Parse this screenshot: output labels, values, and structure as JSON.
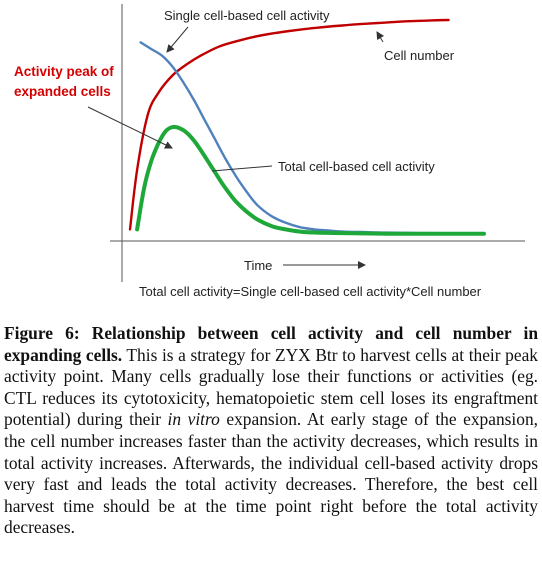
{
  "chart_data": {
    "type": "line",
    "title": "",
    "xlabel": "Time",
    "ylabel": "",
    "xlim": [
      0,
      100
    ],
    "ylim": [
      0,
      100
    ],
    "series": [
      {
        "name": "Cell number",
        "color": "#c00000",
        "x": [
          0,
          2,
          5,
          8,
          12,
          16,
          20,
          25,
          30,
          35,
          40,
          45,
          50,
          55,
          60,
          65,
          70,
          75,
          80,
          85,
          90
        ],
        "y": [
          3,
          30,
          55,
          65,
          73,
          78,
          82,
          86,
          88.5,
          90.5,
          92,
          93.2,
          94.2,
          95,
          95.7,
          96.3,
          96.8,
          97.3,
          97.7,
          98,
          98.2
        ]
      },
      {
        "name": "Single cell-based cell activity",
        "color": "#4f81bd",
        "x": [
          3,
          6,
          9,
          12,
          15,
          18,
          21,
          24,
          27,
          30,
          33,
          36,
          40,
          44,
          48,
          52,
          56,
          60,
          65,
          70,
          75,
          80,
          85,
          90,
          95,
          100
        ],
        "y": [
          88,
          85,
          82,
          77,
          70,
          62,
          53,
          44,
          35,
          27,
          20,
          14,
          9,
          6,
          4,
          3,
          2.5,
          2,
          1.8,
          1.6,
          1.5,
          1.4,
          1.3,
          1.2,
          1.2,
          1.2
        ]
      },
      {
        "name": "Total cell-based cell activity",
        "color": "#1fa83a",
        "x": [
          2,
          4,
          6,
          8,
          10,
          12,
          14,
          16,
          18,
          20,
          22,
          24,
          26,
          28,
          30,
          33,
          36,
          40,
          44,
          48,
          52,
          56,
          60,
          65,
          70,
          75,
          80,
          85,
          90,
          95,
          100
        ],
        "y": [
          3,
          22,
          34,
          42,
          47.5,
          49.5,
          49,
          47,
          43.5,
          39,
          34,
          29,
          24,
          19.5,
          15.5,
          11,
          7.5,
          4.5,
          3,
          2,
          1.6,
          1.4,
          1.3,
          1.2,
          1.1,
          1,
          1,
          1,
          1,
          1,
          1
        ]
      }
    ],
    "annotations": [
      "Single cell-based cell activity",
      "Cell number",
      "Activity peak of",
      "expanded cells",
      "Total cell-based cell activity"
    ],
    "formula": "Total cell activity=Single cell-based cell activity*Cell number",
    "grid": false,
    "legend": "none"
  },
  "caption": {
    "label": "Figure 6: Relationship between cell activity and cell number in expanding cells.",
    "text_1": " This is a strategy for ZYX Btr to harvest cells at their peak activity point. Many cells gradually lose their functions or activities (eg. CTL reduces its cytotoxicity, hematopoietic stem cell loses its engraftment potential) during their ",
    "italic": "in vitro",
    "text_2": " expansion. At early stage of the expansion, the cell number increases faster than the activity decreases, which results in total activity increases. Afterwards, the individual cell-based activity drops very fast and leads the total activity decreases. Therefore, the best cell harvest time should be at the time point right before the total activity decreases."
  }
}
